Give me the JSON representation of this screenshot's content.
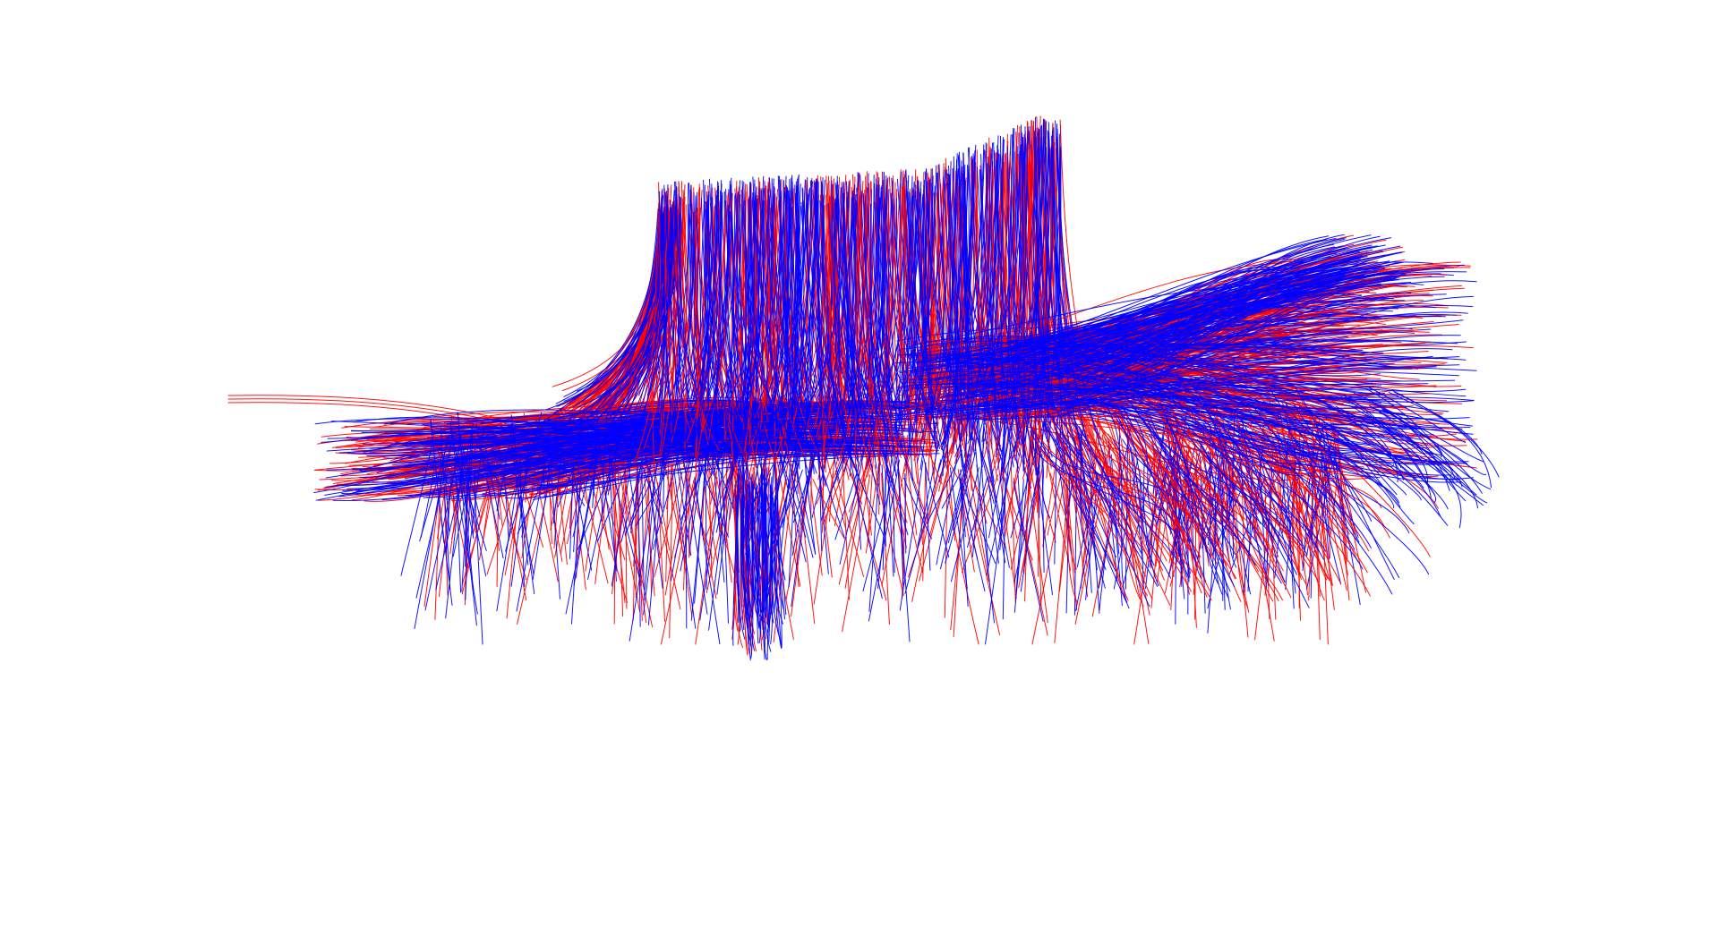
{
  "scene": {
    "background_color": "#ffffff",
    "colors": {
      "tract_set_a": "#ff0000",
      "tract_set_b": "#0000ff"
    }
  }
}
